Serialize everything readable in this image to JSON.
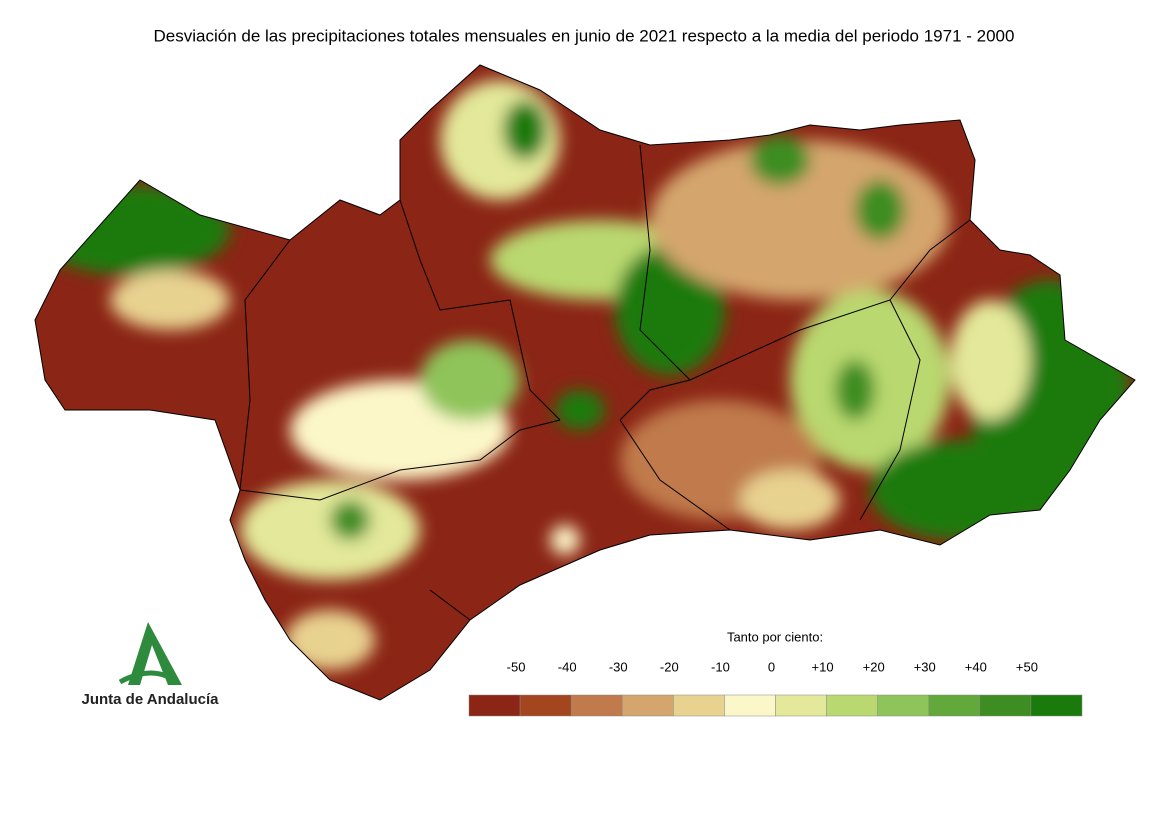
{
  "title": "Desviación de las precipitaciones totales mensuales en junio de 2021 respecto a la media del periodo 1971 - 2000",
  "legend": {
    "label": "Tanto por ciento:",
    "ticks": [
      "-50",
      "-40",
      "-30",
      "-20",
      "-10",
      "0",
      "+10",
      "+20",
      "+30",
      "+40",
      "+50"
    ],
    "colors": [
      "#8b2515",
      "#a3461f",
      "#c07a4b",
      "#d4a66d",
      "#e8d290",
      "#fcf7c9",
      "#e3e89a",
      "#b9d870",
      "#8fc45a",
      "#63a83a",
      "#3e8d22",
      "#1a7a0c"
    ]
  },
  "logo": {
    "text": "Junta de Andalucía"
  }
}
